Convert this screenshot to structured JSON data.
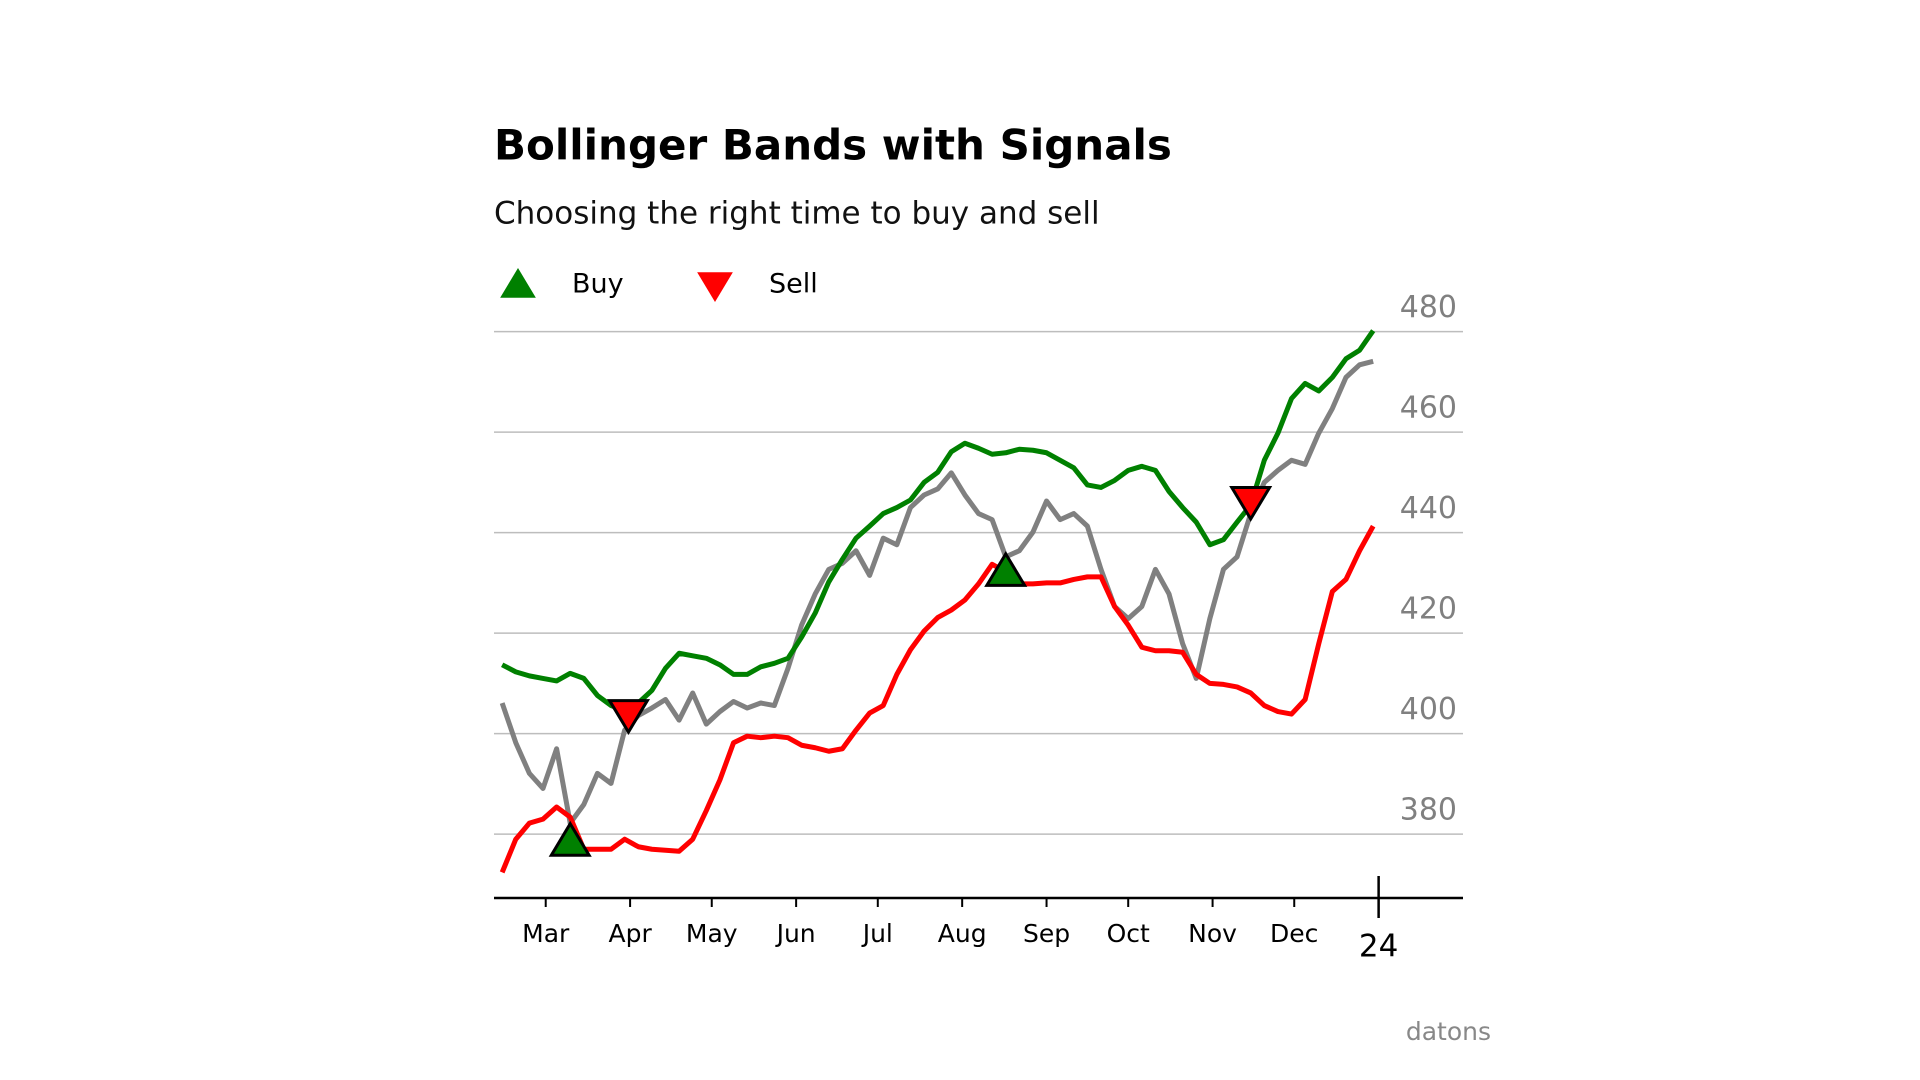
{
  "chart_data": {
    "type": "line",
    "title": "Bollinger Bands with Signals",
    "subtitle": "Choosing the right time to buy and sell",
    "source": "datons",
    "x": [
      44,
      49,
      54,
      59,
      64,
      69,
      74,
      79,
      84,
      89,
      94,
      99,
      104,
      109,
      114,
      119,
      124,
      129,
      134,
      139,
      144,
      149,
      154,
      159,
      164,
      169,
      174,
      179,
      184,
      189,
      194,
      199,
      204,
      209,
      214,
      219,
      224,
      229,
      234,
      239,
      244,
      249,
      254,
      259,
      264,
      269,
      274,
      279,
      284,
      289,
      294,
      299,
      304,
      309,
      314,
      319,
      324,
      329,
      334,
      339,
      344,
      349,
      354,
      359,
      364
    ],
    "series": [
      {
        "color": "#808080",
        "values": [
          406.1,
          398.2,
          392.1,
          389.1,
          397,
          382.2,
          385.9,
          392.1,
          390.1,
          400.7,
          403.6,
          405.1,
          406.8,
          402.7,
          408.1,
          401.9,
          404.4,
          406.4,
          405.1,
          406.1,
          405.6,
          413,
          421.6,
          427.8,
          432.7,
          433.9,
          436.4,
          431.5,
          438.9,
          437.6,
          445,
          447.5,
          448.7,
          451.9,
          447.5,
          443.8,
          442.6,
          435.2,
          436.4,
          440.1,
          446.3,
          442.6,
          443.8,
          441.3,
          432.7,
          425.3,
          422.9,
          425.3,
          432.7,
          427.8,
          417.9,
          411,
          422.9,
          432.7,
          435.2,
          443.8,
          450,
          452.4,
          454.4,
          453.6,
          459.8,
          464.7,
          470.9,
          473.4,
          474.1
        ]
      },
      {
        "color": "#008000",
        "values": [
          413.7,
          412.3,
          411.5,
          411,
          410.5,
          412,
          411,
          407.6,
          405.6,
          404.6,
          406.1,
          408.6,
          413,
          416,
          415.5,
          415,
          413.7,
          411.8,
          411.8,
          413.3,
          414,
          415,
          419.2,
          424,
          430.2,
          434.7,
          438.9,
          441.3,
          443.8,
          445,
          446.5,
          450,
          452,
          456.1,
          457.8,
          456.8,
          455.6,
          455.9,
          456.6,
          456.4,
          455.9,
          454.4,
          452.9,
          449.5,
          449,
          450.4,
          452.4,
          453.2,
          452.4,
          448.2,
          445,
          442.1,
          437.6,
          438.6,
          442.1,
          445.5,
          454.4,
          459.8,
          466.7,
          469.7,
          468.2,
          470.9,
          474.6,
          476.3,
          480.2
        ]
      },
      {
        "color": "#ff0000",
        "values": [
          372.4,
          379,
          382.2,
          383,
          385.4,
          383.4,
          377,
          377,
          377,
          379,
          377.5,
          377,
          376.8,
          376.6,
          379,
          384.7,
          390.8,
          398.2,
          399.5,
          399.2,
          399.5,
          399.2,
          397.7,
          397.2,
          396.5,
          397,
          400.7,
          404.1,
          405.6,
          411.8,
          416.7,
          420.4,
          423.1,
          424.6,
          426.6,
          429.8,
          433.7,
          432.2,
          429.8,
          429.8,
          430,
          430,
          430.7,
          431.2,
          431.2,
          425.3,
          421.6,
          417.2,
          416.5,
          416.5,
          416.2,
          411.8,
          410,
          409.8,
          409.3,
          408.1,
          405.6,
          404.4,
          403.9,
          406.8,
          417.9,
          428.3,
          430.7,
          436.4,
          441.3
        ]
      }
    ],
    "signals": [
      {
        "name": "Buy",
        "color": "#008000",
        "marker": "^",
        "x": [
          69,
          229
        ],
        "values": [
          378.5,
          432.2
        ]
      },
      {
        "name": "Sell",
        "color": "#ff0000",
        "marker": "v",
        "x": [
          90.4,
          319
        ],
        "values": [
          403.9,
          446.3
        ]
      }
    ],
    "xlim": [
      41,
      397
    ],
    "ylim": [
      367.3,
      486.3
    ],
    "xticks": [
      {
        "value": 60,
        "label": "Mar"
      },
      {
        "value": 91,
        "label": "Apr"
      },
      {
        "value": 121,
        "label": "May"
      },
      {
        "value": 152,
        "label": "Jun"
      },
      {
        "value": 182,
        "label": "Jul"
      },
      {
        "value": 213,
        "label": "Aug"
      },
      {
        "value": 244,
        "label": "Sep"
      },
      {
        "value": 274,
        "label": "Oct"
      },
      {
        "value": 305,
        "label": "Nov"
      },
      {
        "value": 335,
        "label": "Dec"
      }
    ],
    "major_xticks": [
      {
        "value": 366,
        "label": "24"
      }
    ],
    "yticks": [
      380,
      400,
      420,
      440,
      460,
      480
    ],
    "grid": true
  }
}
